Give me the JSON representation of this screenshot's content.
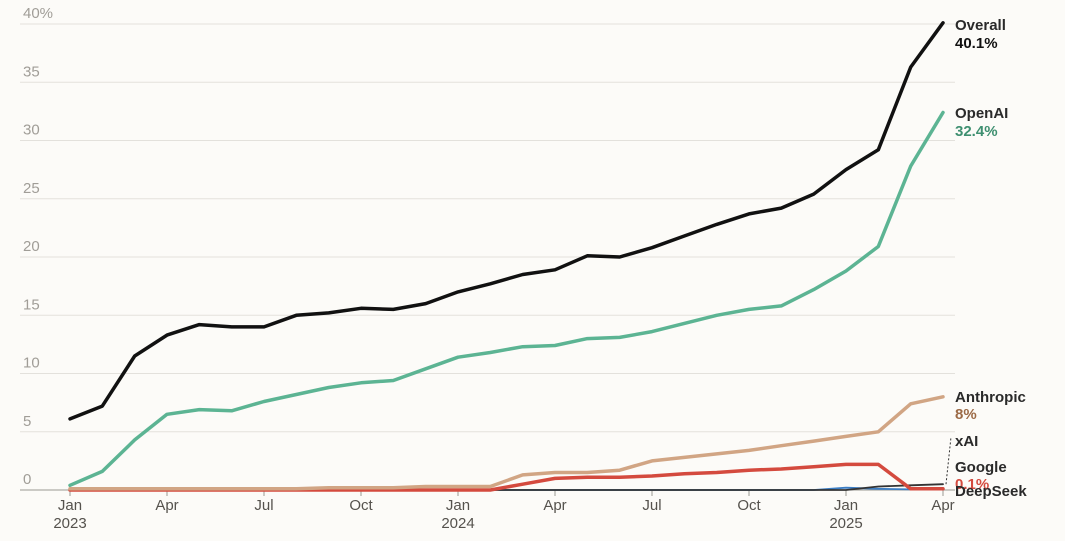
{
  "chart_data": {
    "type": "line",
    "title": "",
    "xlabel": "",
    "ylabel": "",
    "ylim": [
      0,
      40
    ],
    "y_ticks": [
      {
        "value": 0,
        "label": "0"
      },
      {
        "value": 5,
        "label": "5"
      },
      {
        "value": 10,
        "label": "10"
      },
      {
        "value": 15,
        "label": "15"
      },
      {
        "value": 20,
        "label": "20"
      },
      {
        "value": 25,
        "label": "25"
      },
      {
        "value": 30,
        "label": "30"
      },
      {
        "value": 35,
        "label": "35"
      },
      {
        "value": 40,
        "label": "40%"
      }
    ],
    "x": [
      "2023-01",
      "2023-02",
      "2023-03",
      "2023-04",
      "2023-05",
      "2023-06",
      "2023-07",
      "2023-08",
      "2023-09",
      "2023-10",
      "2023-11",
      "2023-12",
      "2024-01",
      "2024-02",
      "2024-03",
      "2024-04",
      "2024-05",
      "2024-06",
      "2024-07",
      "2024-08",
      "2024-09",
      "2024-10",
      "2024-11",
      "2024-12",
      "2025-01",
      "2025-02",
      "2025-03",
      "2025-04"
    ],
    "x_ticks": [
      {
        "index": 0,
        "label": "Jan",
        "year": "2023"
      },
      {
        "index": 3,
        "label": "Apr",
        "year": ""
      },
      {
        "index": 6,
        "label": "Jul",
        "year": ""
      },
      {
        "index": 9,
        "label": "Oct",
        "year": ""
      },
      {
        "index": 12,
        "label": "Jan",
        "year": "2024"
      },
      {
        "index": 15,
        "label": "Apr",
        "year": ""
      },
      {
        "index": 18,
        "label": "Jul",
        "year": ""
      },
      {
        "index": 21,
        "label": "Oct",
        "year": ""
      },
      {
        "index": 24,
        "label": "Jan",
        "year": "2025"
      },
      {
        "index": 27,
        "label": "Apr",
        "year": ""
      }
    ],
    "series": [
      {
        "name": "Overall",
        "end_label": "40.1%",
        "color": "#111111",
        "label_color": "#111111",
        "values": [
          6.1,
          7.2,
          11.5,
          13.3,
          14.2,
          14.0,
          14.0,
          15.0,
          15.2,
          15.6,
          15.5,
          16.0,
          17.0,
          17.7,
          18.5,
          18.9,
          20.1,
          20.0,
          20.8,
          21.8,
          22.8,
          23.7,
          24.2,
          25.4,
          27.5,
          29.2,
          36.3,
          40.1
        ]
      },
      {
        "name": "OpenAI",
        "end_label": "32.4%",
        "color": "#5cb493",
        "label_color": "#3e8f70",
        "values": [
          0.4,
          1.6,
          4.3,
          6.5,
          6.9,
          6.8,
          7.6,
          8.2,
          8.8,
          9.2,
          9.4,
          10.4,
          11.4,
          11.8,
          12.3,
          12.4,
          13.0,
          13.1,
          13.6,
          14.3,
          15.0,
          15.5,
          15.8,
          17.2,
          18.8,
          20.9,
          27.8,
          32.4
        ]
      },
      {
        "name": "Anthropic",
        "end_label": "8%",
        "color": "#d1a584",
        "label_color": "#9c6a46",
        "values": [
          0.1,
          0.1,
          0.1,
          0.1,
          0.1,
          0.1,
          0.1,
          0.1,
          0.2,
          0.2,
          0.2,
          0.3,
          0.3,
          0.3,
          1.3,
          1.5,
          1.5,
          1.7,
          2.5,
          2.8,
          3.1,
          3.4,
          3.8,
          4.2,
          4.6,
          5.0,
          7.4,
          8.0
        ]
      },
      {
        "name": "Google",
        "end_label": "0.1%",
        "color": "#d44a3e",
        "label_color": "#d44a3e",
        "values": [
          0,
          0,
          0,
          0,
          0,
          0,
          0,
          0,
          0,
          0,
          0,
          0,
          0,
          0,
          0.5,
          1.0,
          1.1,
          1.1,
          1.2,
          1.4,
          1.5,
          1.7,
          1.8,
          2.0,
          2.2,
          2.2,
          0.1,
          0.1
        ]
      },
      {
        "name": "xAI",
        "end_label": "",
        "color": "#333333",
        "label_color": "#333333",
        "values": [
          0,
          0,
          0,
          0,
          0,
          0,
          0,
          0,
          0,
          0,
          0,
          0,
          0,
          0,
          0,
          0,
          0,
          0,
          0,
          0,
          0,
          0,
          0,
          0,
          0,
          0.3,
          0.4,
          0.5
        ]
      },
      {
        "name": "DeepSeek",
        "end_label": "",
        "color": "#3b7dc4",
        "label_color": "#333333",
        "values": [
          0,
          0,
          0,
          0,
          0,
          0,
          0,
          0,
          0,
          0,
          0,
          0,
          0,
          0,
          0,
          0,
          0,
          0,
          0,
          0,
          0,
          0,
          0,
          0,
          0.2,
          0.1,
          0.05,
          0.05
        ]
      }
    ],
    "grid": true,
    "legend": "end-labels-right"
  }
}
